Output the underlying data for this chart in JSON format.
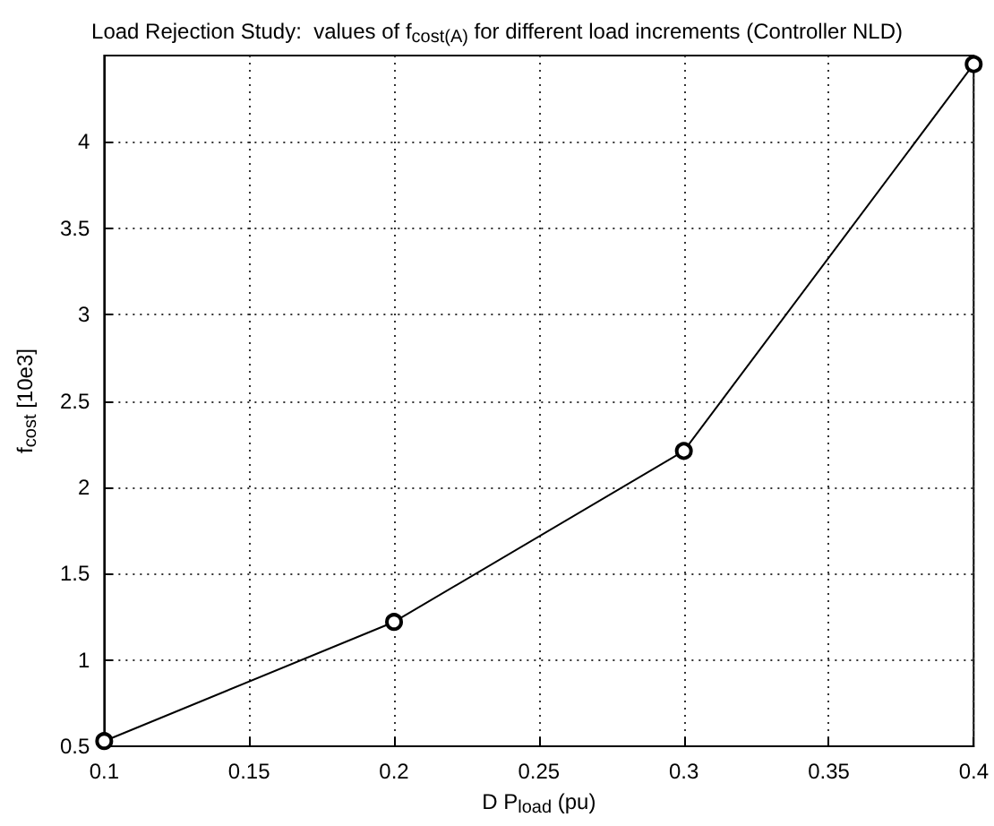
{
  "chart_data": {
    "type": "line",
    "title": "Load Rejection Study:  values of f$_{cost(A)}$ for different load increments (Controller NLD)",
    "xlabel": "D P$_{load}$ (pu)",
    "ylabel": "f$_{cost}$ [10e3]",
    "x": [
      0.1,
      0.2,
      0.3,
      0.4
    ],
    "series": [
      {
        "color": "#000000",
        "values": [
          0.53,
          1.22,
          2.21,
          4.45
        ]
      }
    ],
    "xlim": [
      0.1,
      0.4
    ],
    "xticks": [
      0.1,
      0.15,
      0.2,
      0.25,
      0.3,
      0.35,
      0.4
    ],
    "ylim": [
      0.5,
      4.5
    ],
    "yticks": [
      0.5,
      1,
      1.5,
      2,
      2.5,
      3,
      3.5,
      4
    ],
    "grid": true,
    "marker": "circle",
    "line_style": "solid"
  }
}
